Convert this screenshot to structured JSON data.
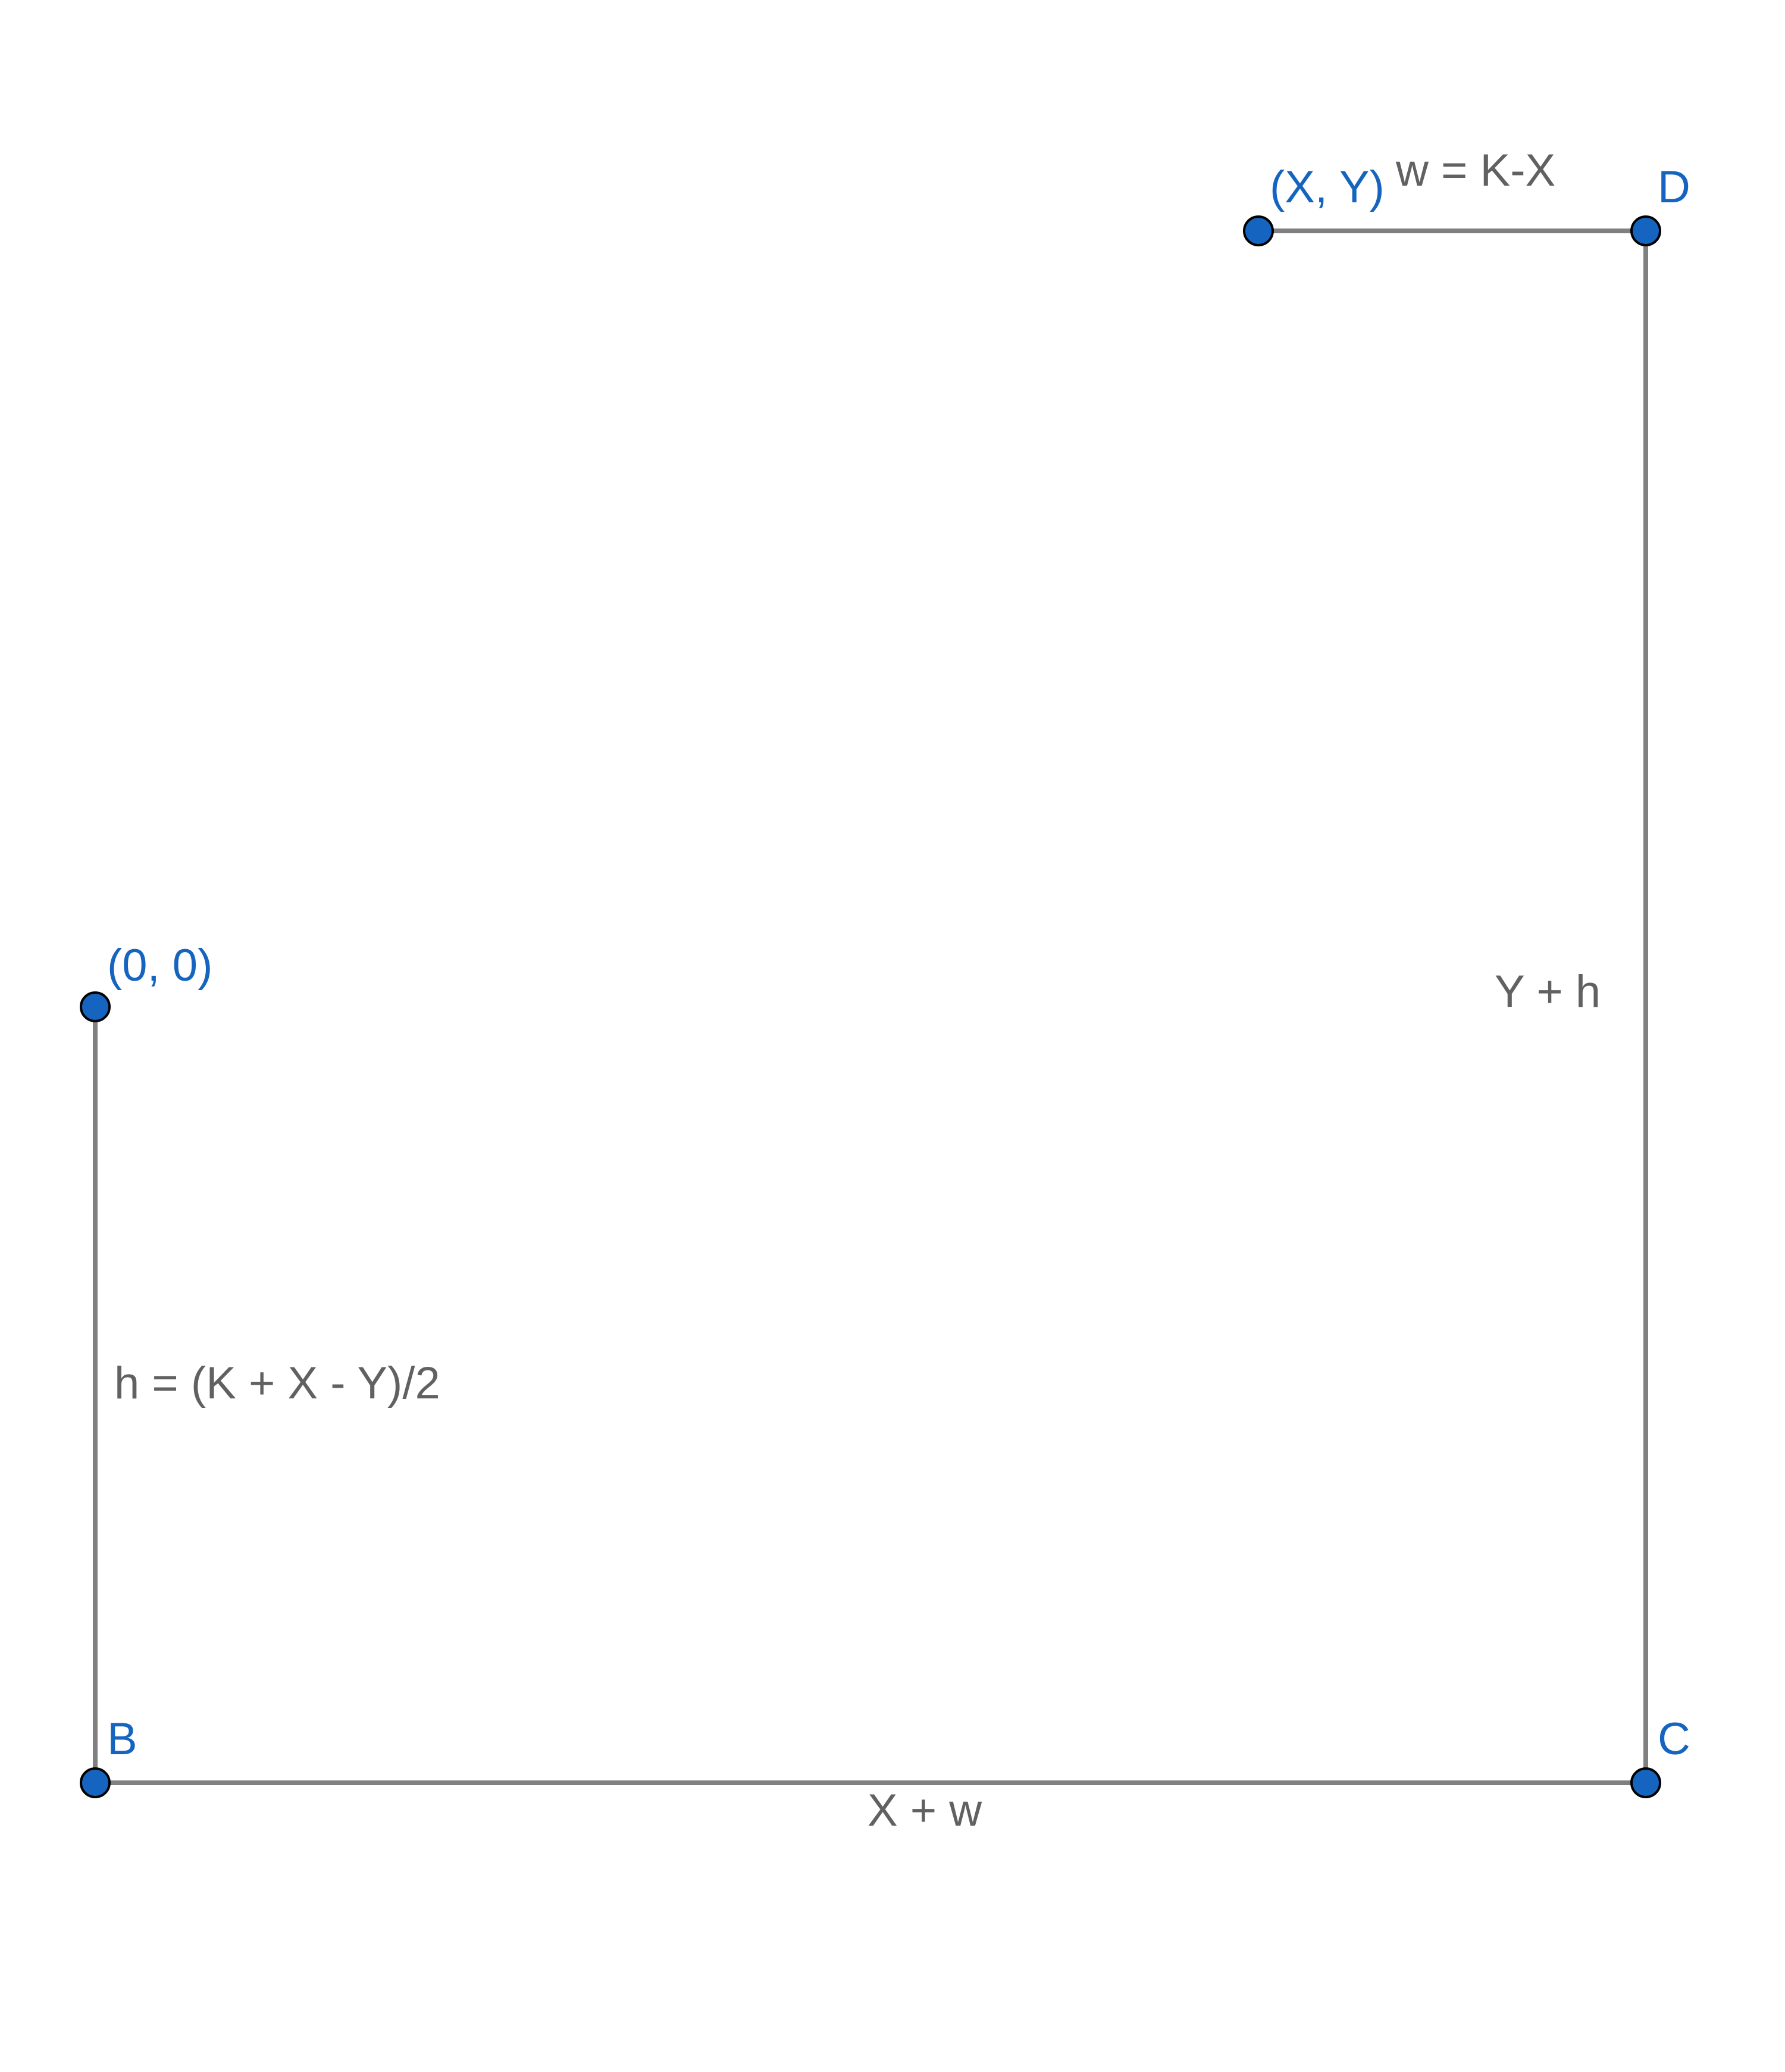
{
  "colors": {
    "point_fill": "#1565c0",
    "point_label": "#1565c0",
    "segment": "#808080",
    "segment_label": "#616161",
    "background": "#ffffff"
  },
  "points": {
    "origin": "(0, 0)",
    "xy": "(X, Y)",
    "b": "B",
    "c": "C",
    "d": "D"
  },
  "segments": {
    "origin_to_b": "h = (K + X - Y)/2",
    "b_to_c": "X + w",
    "c_to_d": "Y + h",
    "xy_to_d": "w = K-X"
  }
}
